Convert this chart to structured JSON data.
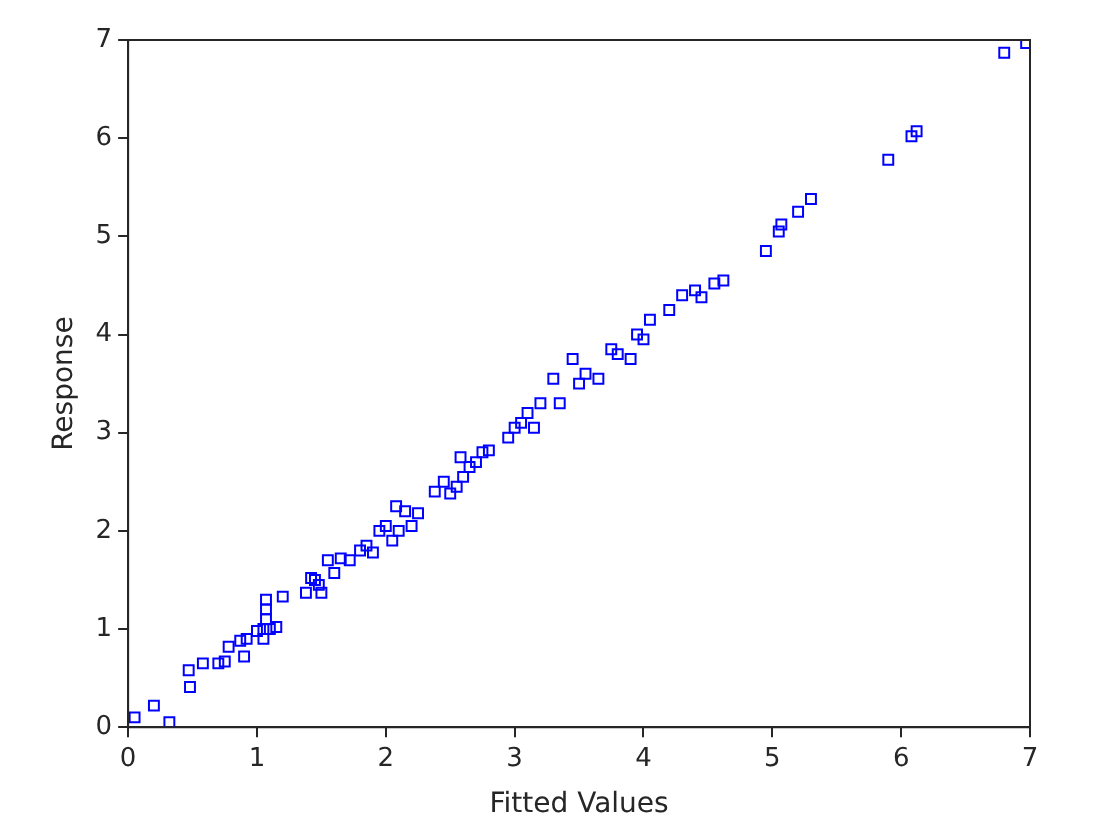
{
  "chart_data": {
    "type": "scatter",
    "xlabel": "Fitted Values",
    "ylabel": "Response",
    "marker": "square",
    "grid": false,
    "legend": false,
    "xlim": [
      0,
      7
    ],
    "ylim": [
      0,
      7
    ],
    "xticks": [
      0,
      1,
      2,
      3,
      4,
      5,
      6,
      7
    ],
    "yticks": [
      0,
      1,
      2,
      3,
      4,
      5,
      6,
      7
    ],
    "series": [
      {
        "color": "#0000ff",
        "x": [
          0.05,
          0.2,
          0.32,
          0.47,
          0.48,
          0.58,
          0.7,
          0.75,
          0.78,
          0.87,
          0.9,
          0.92,
          1.0,
          1.05,
          1.07,
          1.07,
          1.07,
          1.05,
          1.1,
          1.15,
          1.2,
          1.38,
          1.42,
          1.45,
          1.48,
          1.5,
          1.55,
          1.6,
          1.65,
          1.72,
          1.8,
          1.85,
          1.9,
          1.95,
          2.0,
          2.05,
          2.08,
          2.1,
          2.15,
          2.2,
          2.25,
          2.38,
          2.45,
          2.5,
          2.55,
          2.58,
          2.6,
          2.65,
          2.7,
          2.75,
          2.8,
          2.95,
          3.0,
          3.05,
          3.1,
          3.15,
          3.2,
          3.3,
          3.35,
          3.45,
          3.5,
          3.55,
          3.65,
          3.75,
          3.8,
          3.9,
          3.95,
          4.0,
          4.05,
          4.2,
          4.3,
          4.4,
          4.45,
          4.55,
          4.62,
          4.95,
          5.05,
          5.07,
          5.2,
          5.3,
          5.9,
          6.08,
          6.12,
          6.8,
          6.97
        ],
        "values": [
          0.1,
          0.22,
          0.05,
          0.58,
          0.41,
          0.65,
          0.65,
          0.67,
          0.82,
          0.88,
          0.72,
          0.9,
          0.98,
          1.0,
          1.1,
          1.2,
          1.3,
          0.9,
          1.0,
          1.02,
          1.33,
          1.37,
          1.52,
          1.5,
          1.45,
          1.37,
          1.7,
          1.57,
          1.72,
          1.7,
          1.8,
          1.85,
          1.78,
          2.0,
          2.05,
          1.9,
          2.25,
          2.0,
          2.2,
          2.05,
          2.18,
          2.4,
          2.5,
          2.38,
          2.45,
          2.75,
          2.55,
          2.65,
          2.7,
          2.8,
          2.82,
          2.95,
          3.05,
          3.1,
          3.2,
          3.05,
          3.3,
          3.55,
          3.3,
          3.75,
          3.5,
          3.6,
          3.55,
          3.85,
          3.8,
          3.75,
          4.0,
          3.95,
          4.15,
          4.25,
          4.4,
          4.45,
          4.38,
          4.52,
          4.55,
          4.85,
          5.05,
          5.12,
          5.25,
          5.38,
          5.78,
          6.02,
          6.07,
          6.87,
          6.97
        ]
      }
    ]
  }
}
